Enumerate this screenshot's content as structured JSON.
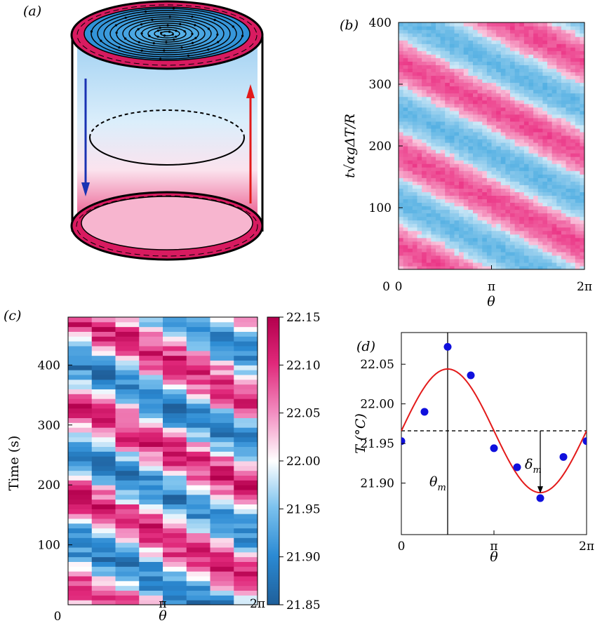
{
  "panels": {
    "a": {
      "label": "(a)",
      "colors": {
        "hot": "#d81b60",
        "cold": "#42a5e0",
        "down_arrow": "#1a33b3",
        "up_arrow": "#e31a1a"
      }
    },
    "b": {
      "label": "(b)"
    },
    "c": {
      "label": "(c)"
    },
    "d": {
      "label": "(d)",
      "annot_theta": "θ",
      "annot_theta_sub": "m",
      "annot_delta": "δ",
      "annot_delta_sub": "m"
    }
  },
  "chart_data": [
    {
      "id": "b",
      "type": "heatmap",
      "xlabel": "θ",
      "ylabel": "t√αgΔT/R",
      "xlim": [
        0,
        6.2832
      ],
      "ylim": [
        0,
        400
      ],
      "x_ticks": [
        {
          "v": 0,
          "t": "0"
        },
        {
          "v": 3.1416,
          "t": "π"
        },
        {
          "v": 6.2832,
          "t": "2π"
        }
      ],
      "y_ticks": [
        {
          "v": 0,
          "t": "0"
        },
        {
          "v": 100,
          "t": "100"
        },
        {
          "v": 200,
          "t": "200"
        },
        {
          "v": 300,
          "t": "300"
        },
        {
          "v": 400,
          "t": "400"
        }
      ],
      "pattern": "diagonal bands, period ~150, drifting down-right",
      "colors": {
        "hot": "#e91e78",
        "cold": "#3fa6df"
      }
    },
    {
      "id": "c",
      "type": "heatmap",
      "xlabel": "θ",
      "ylabel": "Time (s)",
      "xlim": [
        0,
        6.2832
      ],
      "ylim": [
        0,
        480
      ],
      "columns": 8,
      "x_ticks": [
        {
          "v": 0,
          "t": "0"
        },
        {
          "v": 3.1416,
          "t": "π"
        },
        {
          "v": 6.2832,
          "t": "2π"
        }
      ],
      "y_ticks": [
        {
          "v": 100,
          "t": "100"
        },
        {
          "v": 200,
          "t": "200"
        },
        {
          "v": 300,
          "t": "300"
        },
        {
          "v": 400,
          "t": "400"
        }
      ],
      "colorbar": {
        "min": 21.85,
        "max": 22.15,
        "ticks": [
          "22.15",
          "22.10",
          "22.05",
          "22.00",
          "21.95",
          "21.90",
          "21.85"
        ]
      },
      "colors": {
        "low": "#1f5f9a",
        "mid": "#ffffff",
        "high": "#b3004d"
      }
    },
    {
      "id": "d",
      "type": "scatter",
      "xlabel": "θ",
      "ylabel": "T (°C)",
      "xlim": [
        0,
        6.2832
      ],
      "ylim": [
        21.835,
        22.09
      ],
      "x_ticks": [
        {
          "v": 0,
          "t": "0"
        },
        {
          "v": 3.1416,
          "t": "π"
        },
        {
          "v": 6.2832,
          "t": "2π"
        }
      ],
      "y_ticks": [
        {
          "v": 21.9,
          "t": "21.90"
        },
        {
          "v": 21.95,
          "t": "21.95"
        },
        {
          "v": 22.0,
          "t": "22.00"
        },
        {
          "v": 22.05,
          "t": "22.05"
        }
      ],
      "points": {
        "x": [
          0,
          0.7854,
          1.5708,
          2.3562,
          3.1416,
          3.927,
          4.7124,
          5.4978,
          6.2832
        ],
        "y": [
          21.953,
          21.99,
          22.072,
          22.036,
          21.944,
          21.92,
          21.881,
          21.933,
          21.953
        ]
      },
      "fit": {
        "mean": 21.966,
        "amplitude": 0.078,
        "theta_m": 1.5708
      },
      "mean_line": 21.966,
      "colors": {
        "points": "#1010dd",
        "fit": "#e31a1a"
      }
    }
  ]
}
